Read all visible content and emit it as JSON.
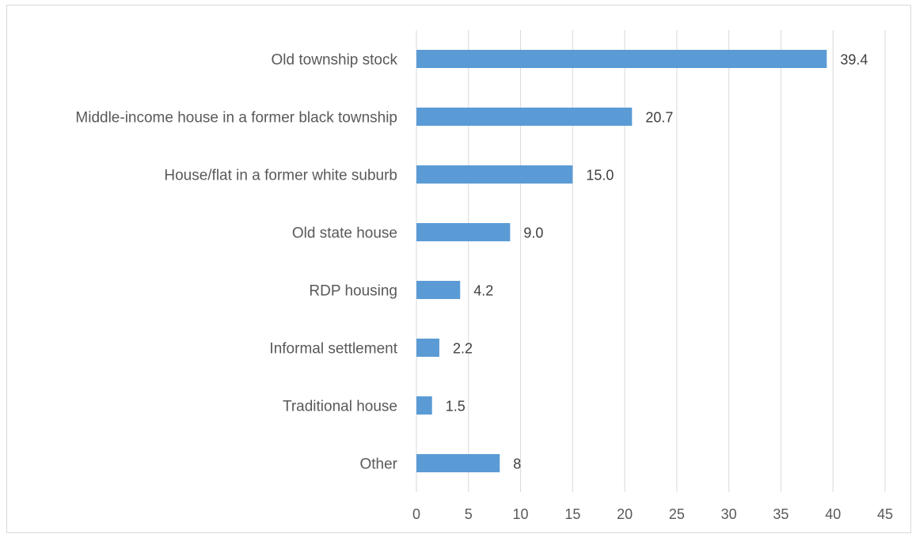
{
  "chart_data": {
    "type": "bar",
    "orientation": "horizontal",
    "categories": [
      "Old township stock",
      "Middle-income house in a former black township",
      "House/flat in a former white suburb",
      "Old state house",
      "RDP housing",
      "Informal settlement",
      "Traditional house",
      "Other"
    ],
    "values": [
      39.4,
      20.7,
      15.0,
      9.0,
      4.2,
      2.2,
      1.5,
      8
    ],
    "value_labels": [
      "39.4",
      "20.7",
      "15.0",
      "9.0",
      "4.2",
      "2.2",
      "1.5",
      "8"
    ],
    "xlim": [
      0,
      45
    ],
    "x_ticks": [
      "0",
      "5",
      "10",
      "15",
      "20",
      "25",
      "30",
      "35",
      "40",
      "45"
    ],
    "grid": "vertical",
    "bar_color": "#5b9bd5",
    "grid_color": "#d9d9d9",
    "title": "",
    "xlabel": "",
    "ylabel": ""
  }
}
